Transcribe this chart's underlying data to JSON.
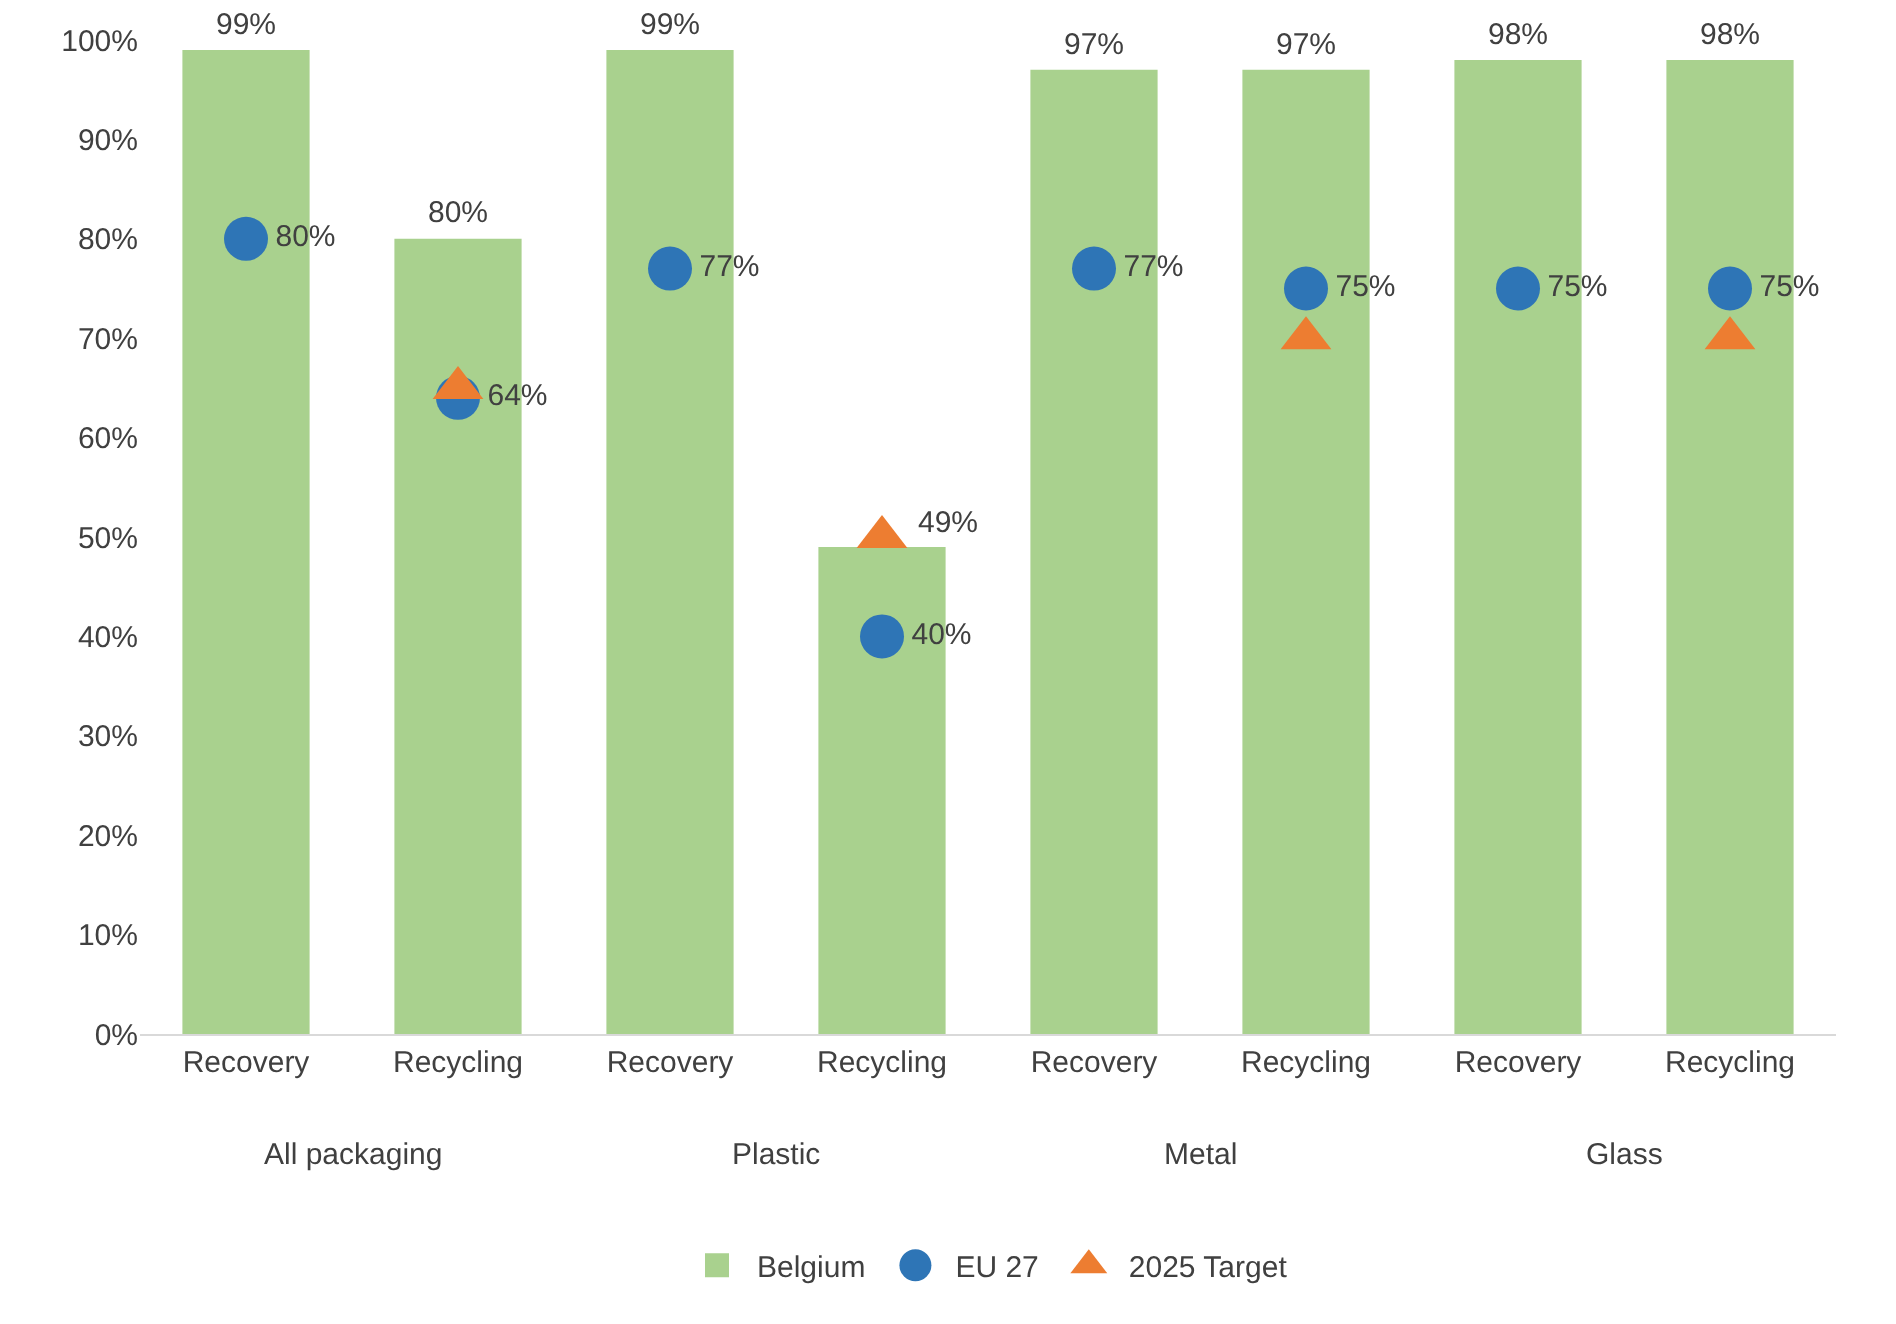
{
  "chart_data": {
    "type": "bar",
    "categories": [
      "Recovery",
      "Recycling",
      "Recovery",
      "Recycling",
      "Recovery",
      "Recycling",
      "Recovery",
      "Recycling"
    ],
    "annotations": [
      "All packaging",
      "Plastic",
      "Metal",
      "Glass"
    ],
    "series": [
      {
        "name": "Belgium",
        "type": "bar",
        "color": "#a9d18e",
        "values": [
          99,
          80,
          99,
          49,
          97,
          97,
          98,
          98
        ],
        "value_labels": [
          "99%",
          "80%",
          "99%",
          "49%",
          "97%",
          "97%",
          "98%",
          "98%"
        ]
      },
      {
        "name": "EU 27",
        "type": "scatter",
        "marker": "circle",
        "color": "#2e75b6",
        "values": [
          80,
          64,
          77,
          40,
          77,
          75,
          75,
          75
        ],
        "value_labels": [
          "80%",
          "64%",
          "77%",
          "40%",
          "77%",
          "75%",
          "75%",
          "75%"
        ]
      },
      {
        "name": "2025 Target",
        "type": "scatter",
        "marker": "triangle",
        "color": "#ed7d31",
        "values": [
          null,
          65,
          null,
          50,
          null,
          70,
          null,
          70
        ]
      }
    ],
    "ylim": [
      0,
      100
    ],
    "yticks": [
      {
        "value": 0,
        "label": "0%"
      },
      {
        "value": 10,
        "label": "10%"
      },
      {
        "value": 20,
        "label": "20%"
      },
      {
        "value": 30,
        "label": "30%"
      },
      {
        "value": 40,
        "label": "40%"
      },
      {
        "value": 50,
        "label": "50%"
      },
      {
        "value": 60,
        "label": "60%"
      },
      {
        "value": 70,
        "label": "70%"
      },
      {
        "value": 80,
        "label": "80%"
      },
      {
        "value": 90,
        "label": "90%"
      },
      {
        "value": 100,
        "label": "100%"
      }
    ],
    "grid": false,
    "legend": "bottom"
  }
}
